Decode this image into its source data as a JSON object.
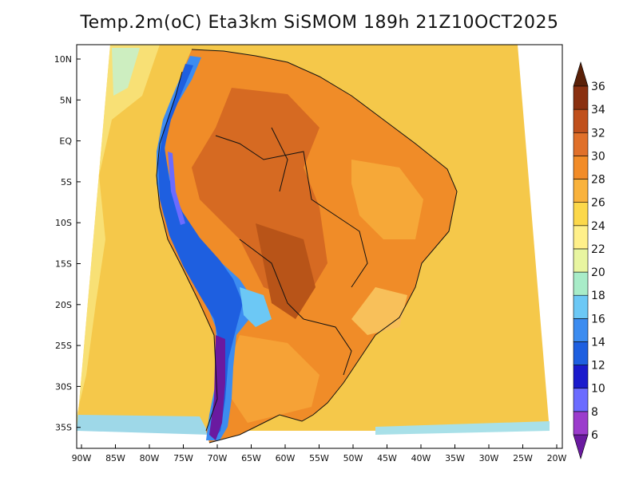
{
  "title": "Temp.2m(oC) Eta3km SiSMOM 189h 21Z10OCT2025",
  "map": {
    "lon_range": [
      -90,
      -20
    ],
    "lat_range": [
      -35,
      10
    ],
    "lat_labels": [
      "10N",
      "5N",
      "EQ",
      "5S",
      "10S",
      "15S",
      "20S",
      "25S",
      "30S",
      "35S"
    ],
    "lon_labels": [
      "90W",
      "85W",
      "80W",
      "75W",
      "70W",
      "65W",
      "60W",
      "55W",
      "50W",
      "45W",
      "40W",
      "35W",
      "30W",
      "25W",
      "20W"
    ],
    "ocean_color": "#f5c84a",
    "land_color": "#f08c28"
  },
  "colorbar": {
    "levels": [
      "6",
      "8",
      "10",
      "12",
      "14",
      "16",
      "18",
      "20",
      "22",
      "24",
      "26",
      "28",
      "30",
      "32",
      "34",
      "36"
    ],
    "colors": [
      "#6a1aa0",
      "#9b3ccc",
      "#6b6bff",
      "#1a1acc",
      "#1e5fe0",
      "#3c8cf0",
      "#6cc8f5",
      "#a8ecc8",
      "#e8f5a0",
      "#fff08a",
      "#fcd84a",
      "#f9b23c",
      "#f28c28",
      "#e0702a",
      "#c0501c",
      "#8a3010",
      "#5a2008"
    ]
  }
}
